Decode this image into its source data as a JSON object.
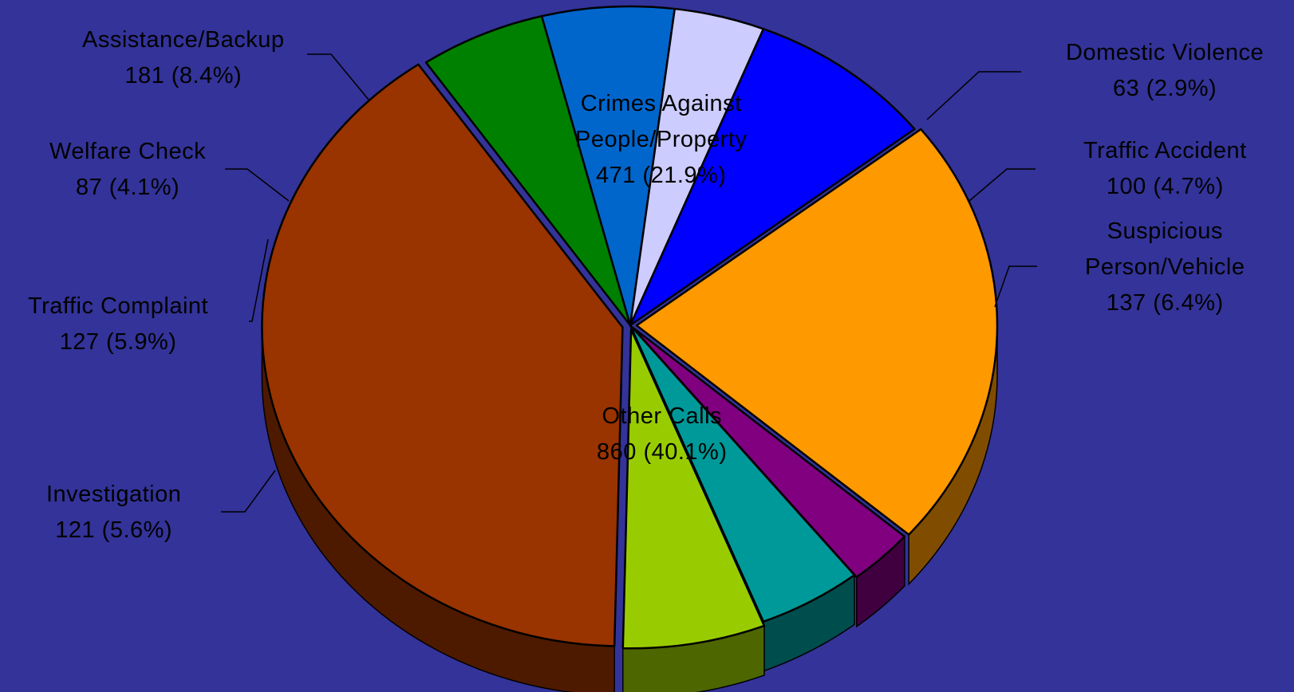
{
  "chart_data": {
    "type": "pie",
    "title": "",
    "style": "3d-exploded",
    "background_color": "#333399",
    "slices": [
      {
        "key": "domestic",
        "name": "Domestic Violence",
        "value": 63,
        "percent": "2.9%",
        "color": "#800080",
        "label_lines": [
          "Domestic Violence"
        ],
        "value_text": "63  (2.9%)"
      },
      {
        "key": "accident",
        "name": "Traffic Accident",
        "value": 100,
        "percent": "4.7%",
        "color": "#009999",
        "label_lines": [
          "Traffic Accident"
        ],
        "value_text": "100  (4.7%)"
      },
      {
        "key": "suspicious",
        "name": "Suspicious Person/Vehicle",
        "value": 137,
        "percent": "6.4%",
        "color": "#99CC00",
        "label_lines": [
          "Suspicious",
          "Person/Vehicle"
        ],
        "value_text": "137  (6.4%)"
      },
      {
        "key": "other",
        "name": "Other Calls",
        "value": 860,
        "percent": "40.1%",
        "color": "#993300",
        "label_lines": [
          "Other Calls"
        ],
        "value_text": "860  (40.1%)"
      },
      {
        "key": "investigation",
        "name": "Investigation",
        "value": 121,
        "percent": "5.6%",
        "color": "#008000",
        "label_lines": [
          "Investigation"
        ],
        "value_text": "121  (5.6%)"
      },
      {
        "key": "traffic_complaint",
        "name": "Traffic Complaint",
        "value": 127,
        "percent": "5.9%",
        "color": "#0066CC",
        "label_lines": [
          "Traffic Complaint"
        ],
        "value_text": "127  (5.9%)"
      },
      {
        "key": "welfare",
        "name": "Welfare Check",
        "value": 87,
        "percent": "4.1%",
        "color": "#CCCCFF",
        "label_lines": [
          "Welfare Check"
        ],
        "value_text": "87  (4.1%)"
      },
      {
        "key": "assistance",
        "name": "Assistance/Backup",
        "value": 181,
        "percent": "8.4%",
        "color": "#0000FF",
        "label_lines": [
          "Assistance/Backup"
        ],
        "value_text": "181  (8.4%)"
      },
      {
        "key": "crimes",
        "name": "Crimes Against People/Property",
        "value": 471,
        "percent": "21.9%",
        "color": "#FF9900",
        "label_lines": [
          "Crimes Against",
          "People/Property"
        ],
        "value_text": "471  (21.9%)"
      }
    ]
  }
}
